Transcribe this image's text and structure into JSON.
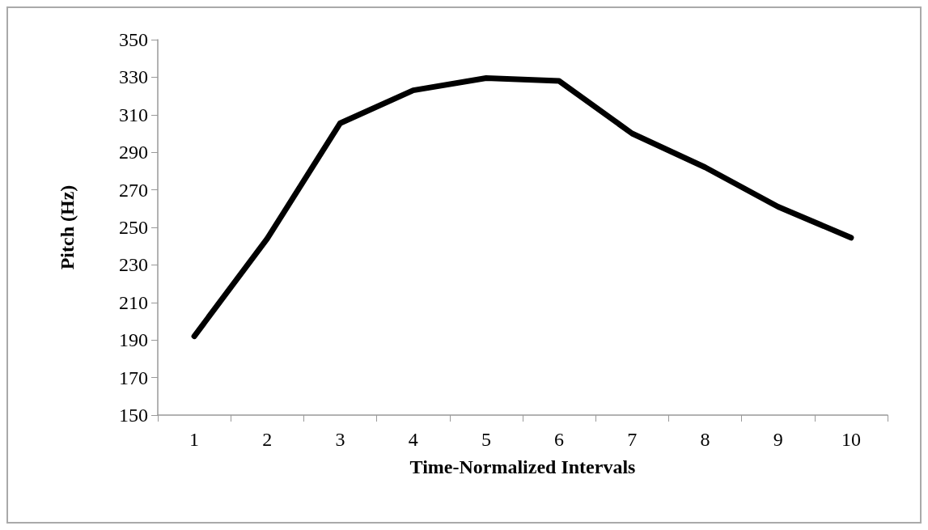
{
  "chart_data": {
    "type": "line",
    "xlabel": "Time-Normalized Intervals",
    "ylabel": "Pitch (Hz)",
    "categories": [
      "1",
      "2",
      "3",
      "4",
      "5",
      "6",
      "7",
      "8",
      "9",
      "10"
    ],
    "series": [
      {
        "color": "#000000",
        "values": [
          192,
          244,
          305.5,
          323,
          329.5,
          328,
          300,
          282,
          261,
          244.5
        ]
      }
    ],
    "ylim": [
      150,
      350
    ],
    "yticks": [
      150,
      170,
      190,
      210,
      230,
      250,
      270,
      290,
      310,
      330,
      350
    ],
    "grid": false,
    "marker": "none",
    "line_style": "solid"
  }
}
